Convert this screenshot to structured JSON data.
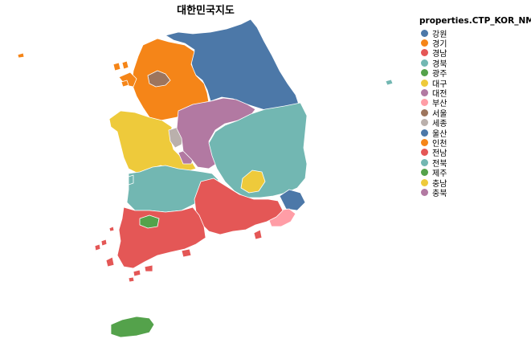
{
  "title": "대한민국지도",
  "legend": {
    "title": "properties.CTP_KOR_NM",
    "items": [
      {
        "label": "강원",
        "color": "#4c78a8"
      },
      {
        "label": "경기",
        "color": "#f58518"
      },
      {
        "label": "경남",
        "color": "#e45756"
      },
      {
        "label": "경북",
        "color": "#72b7b2"
      },
      {
        "label": "광주",
        "color": "#54a24b"
      },
      {
        "label": "대구",
        "color": "#eeca3b"
      },
      {
        "label": "대전",
        "color": "#b279a2"
      },
      {
        "label": "부산",
        "color": "#ff9da6"
      },
      {
        "label": "서울",
        "color": "#9d755d"
      },
      {
        "label": "세종",
        "color": "#bab0ac"
      },
      {
        "label": "울산",
        "color": "#4c78a8"
      },
      {
        "label": "인천",
        "color": "#f58518"
      },
      {
        "label": "전남",
        "color": "#e45756"
      },
      {
        "label": "전북",
        "color": "#72b7b2"
      },
      {
        "label": "제주",
        "color": "#54a24b"
      },
      {
        "label": "충남",
        "color": "#eeca3b"
      },
      {
        "label": "충북",
        "color": "#b279a2"
      }
    ]
  }
}
